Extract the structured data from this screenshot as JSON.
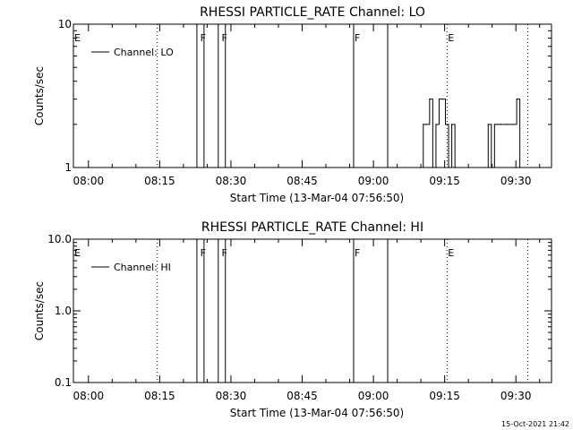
{
  "footer": {
    "timestamp": "15-Oct-2021 21:42"
  },
  "chart_data": [
    {
      "type": "line",
      "title": "RHESSI PARTICLE_RATE Channel: LO",
      "xlabel": "Start Time (13-Mar-04 07:56:50)",
      "ylabel": "Counts/sec",
      "yscale": "log",
      "ylim": [
        1,
        10
      ],
      "ytick_values": [
        1,
        10
      ],
      "ytick_labels": [
        "1",
        "10"
      ],
      "x_range": [
        "07:56:50",
        "09:37:30"
      ],
      "xtick_labels": [
        "08:00",
        "08:15",
        "08:30",
        "08:45",
        "09:00",
        "09:15",
        "09:30"
      ],
      "legend": {
        "position": "top-left",
        "entries": [
          "Channel: LO"
        ]
      },
      "grid": false,
      "dotted_lines": [
        "08:14:30",
        "09:15:30",
        "09:32:30"
      ],
      "flags": [
        {
          "time": "07:56:50",
          "label": "E"
        },
        {
          "time": "08:23:20",
          "label": "F"
        },
        {
          "time": "08:27:50",
          "label": "F"
        },
        {
          "time": "08:55:50",
          "label": "F"
        },
        {
          "time": "09:15:30",
          "label": "E"
        }
      ],
      "vertical_lines": [
        "08:22:50",
        "08:24:20",
        "08:27:20",
        "08:28:50",
        "08:55:50",
        "09:03:00"
      ],
      "series": [
        {
          "values": [
            [
              "09:09:50",
              1
            ],
            [
              "09:10:30",
              2
            ],
            [
              "09:11:10",
              2
            ],
            [
              "09:11:50",
              3
            ],
            [
              "09:12:30",
              1
            ],
            [
              "09:13:10",
              2
            ],
            [
              "09:13:50",
              3
            ],
            [
              "09:14:30",
              3
            ],
            [
              "09:15:10",
              2
            ],
            [
              "09:15:50",
              1
            ],
            [
              "09:16:30",
              2
            ],
            [
              "09:17:10",
              1
            ],
            [
              "09:23:30",
              1
            ],
            [
              "09:24:10",
              2
            ],
            [
              "09:24:50",
              1
            ],
            [
              "09:25:30",
              2
            ],
            [
              "09:26:10",
              2
            ],
            [
              "09:26:50",
              2
            ],
            [
              "09:28:10",
              2
            ],
            [
              "09:29:30",
              2
            ],
            [
              "09:30:10",
              3
            ],
            [
              "09:30:50",
              1
            ]
          ]
        }
      ]
    },
    {
      "type": "line",
      "title": "RHESSI PARTICLE_RATE Channel: HI",
      "xlabel": "Start Time (13-Mar-04 07:56:50)",
      "ylabel": "Counts/sec",
      "yscale": "log",
      "ylim": [
        0.1,
        10
      ],
      "ytick_values": [
        0.1,
        1,
        10
      ],
      "ytick_labels": [
        "0.1",
        "1.0",
        "10.0"
      ],
      "x_range": [
        "07:56:50",
        "09:37:30"
      ],
      "xtick_labels": [
        "08:00",
        "08:15",
        "08:30",
        "08:45",
        "09:00",
        "09:15",
        "09:30"
      ],
      "legend": {
        "position": "top-left",
        "entries": [
          "Channel: HI"
        ]
      },
      "grid": false,
      "dotted_lines": [
        "08:14:30",
        "09:15:30",
        "09:32:30"
      ],
      "flags": [
        {
          "time": "07:56:50",
          "label": "E"
        },
        {
          "time": "08:23:20",
          "label": "F"
        },
        {
          "time": "08:27:50",
          "label": "F"
        },
        {
          "time": "08:55:50",
          "label": "F"
        },
        {
          "time": "09:15:30",
          "label": "E"
        }
      ],
      "vertical_lines": [
        "08:22:50",
        "08:24:20",
        "08:27:20",
        "08:28:50",
        "08:55:50",
        "09:03:00"
      ],
      "series": [
        {
          "values": []
        }
      ]
    }
  ]
}
